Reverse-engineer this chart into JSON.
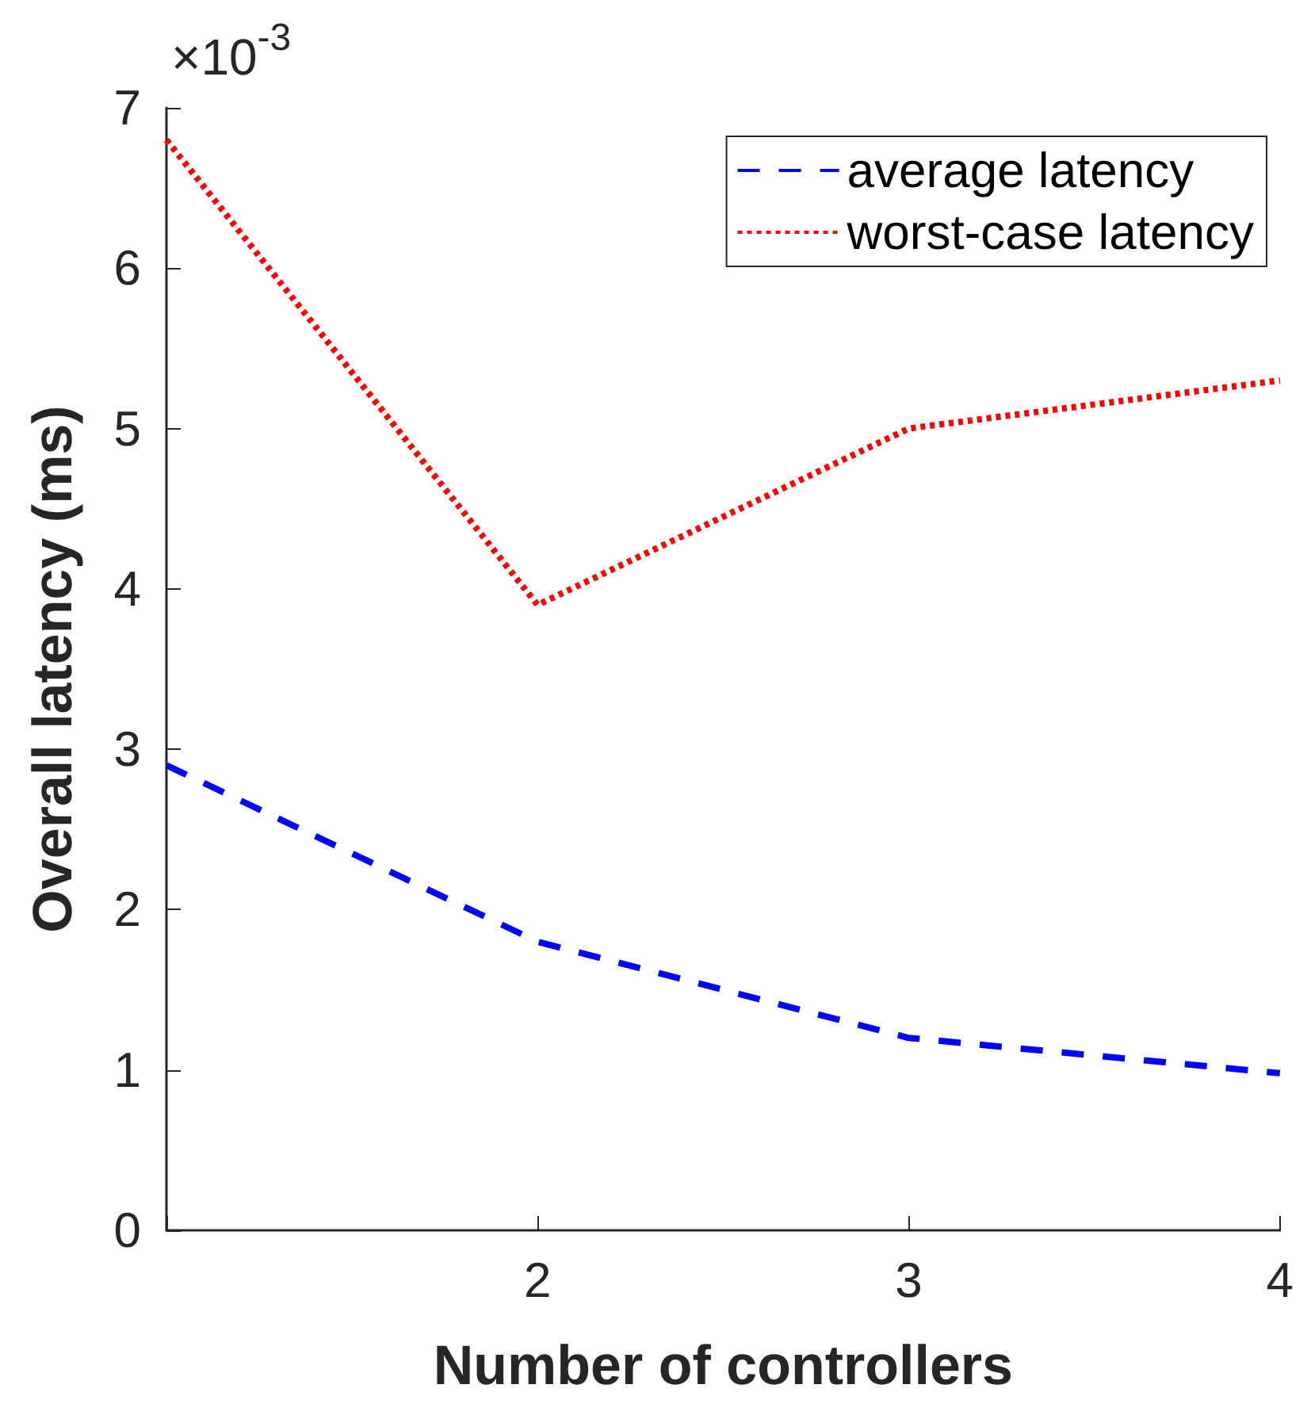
{
  "chart_data": {
    "type": "line",
    "xlabel": "Number of controllers",
    "ylabel": "Overall latency (ms)",
    "annotations": [
      "×10$^{-3}$"
    ],
    "x": [
      1,
      2,
      3,
      4
    ],
    "series": [
      {
        "name": "average latency",
        "color": "#0000ff",
        "line_style": "dashed",
        "values": [
          2.9,
          1.8,
          1.2,
          0.98
        ]
      },
      {
        "name": "worst-case latency",
        "color": "#ff0000",
        "line_style": "dotted",
        "values": [
          6.8,
          3.9,
          5.0,
          5.3
        ]
      }
    ],
    "xlim": [
      1,
      4
    ],
    "xticks": [
      {
        "value": 1,
        "label": null
      },
      2,
      3,
      4
    ],
    "ylim": [
      0,
      7
    ],
    "yticks": [
      0,
      1,
      2,
      3,
      4,
      5,
      6,
      7
    ],
    "grid": false,
    "legend": "top right",
    "marker": "none"
  }
}
